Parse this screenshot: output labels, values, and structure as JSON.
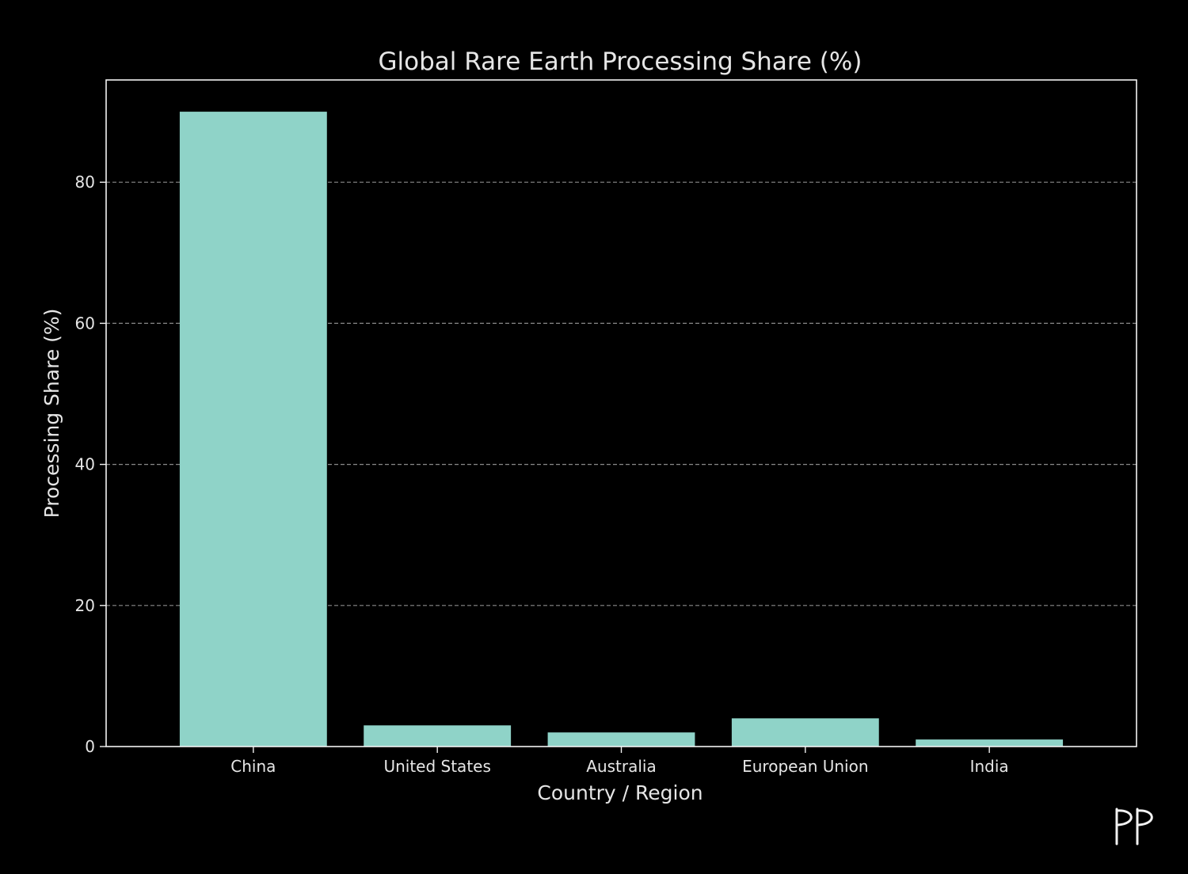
{
  "colors": {
    "background": "#000000",
    "bar": "#8fd3c8",
    "text": "#e6e6e6",
    "grid": "#8a8a8a"
  },
  "chart_data": {
    "type": "bar",
    "title": "Global Rare Earth Processing Share (%)",
    "xlabel": "Country / Region",
    "ylabel": "Processing Share (%)",
    "categories": [
      "China",
      "United States",
      "Australia",
      "European Union",
      "India"
    ],
    "values": [
      90,
      3,
      2,
      4,
      1
    ],
    "ylim": [
      0,
      94.5
    ],
    "yticks": [
      0,
      20,
      40,
      60,
      80
    ],
    "grid": "y-dashed",
    "legend": "none"
  },
  "logo": {
    "text": "PP"
  }
}
